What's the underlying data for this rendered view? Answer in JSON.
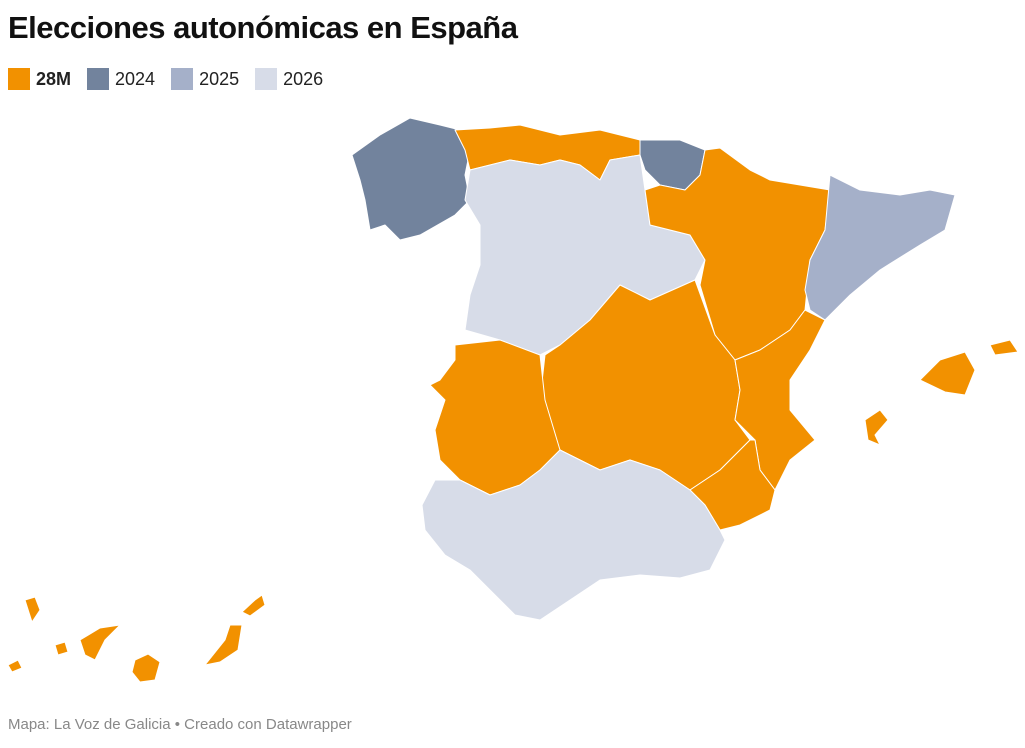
{
  "header": {
    "title": "Elecciones autonómicas en España"
  },
  "legend": [
    {
      "label": "28M",
      "color": "#f29100"
    },
    {
      "label": "2024",
      "color": "#72839d"
    },
    {
      "label": "2025",
      "color": "#a5b0c9"
    },
    {
      "label": "2026",
      "color": "#d7dce8"
    }
  ],
  "footer": {
    "text": "Mapa: La Voz de Galicia • Creado con Datawrapper"
  }
}
